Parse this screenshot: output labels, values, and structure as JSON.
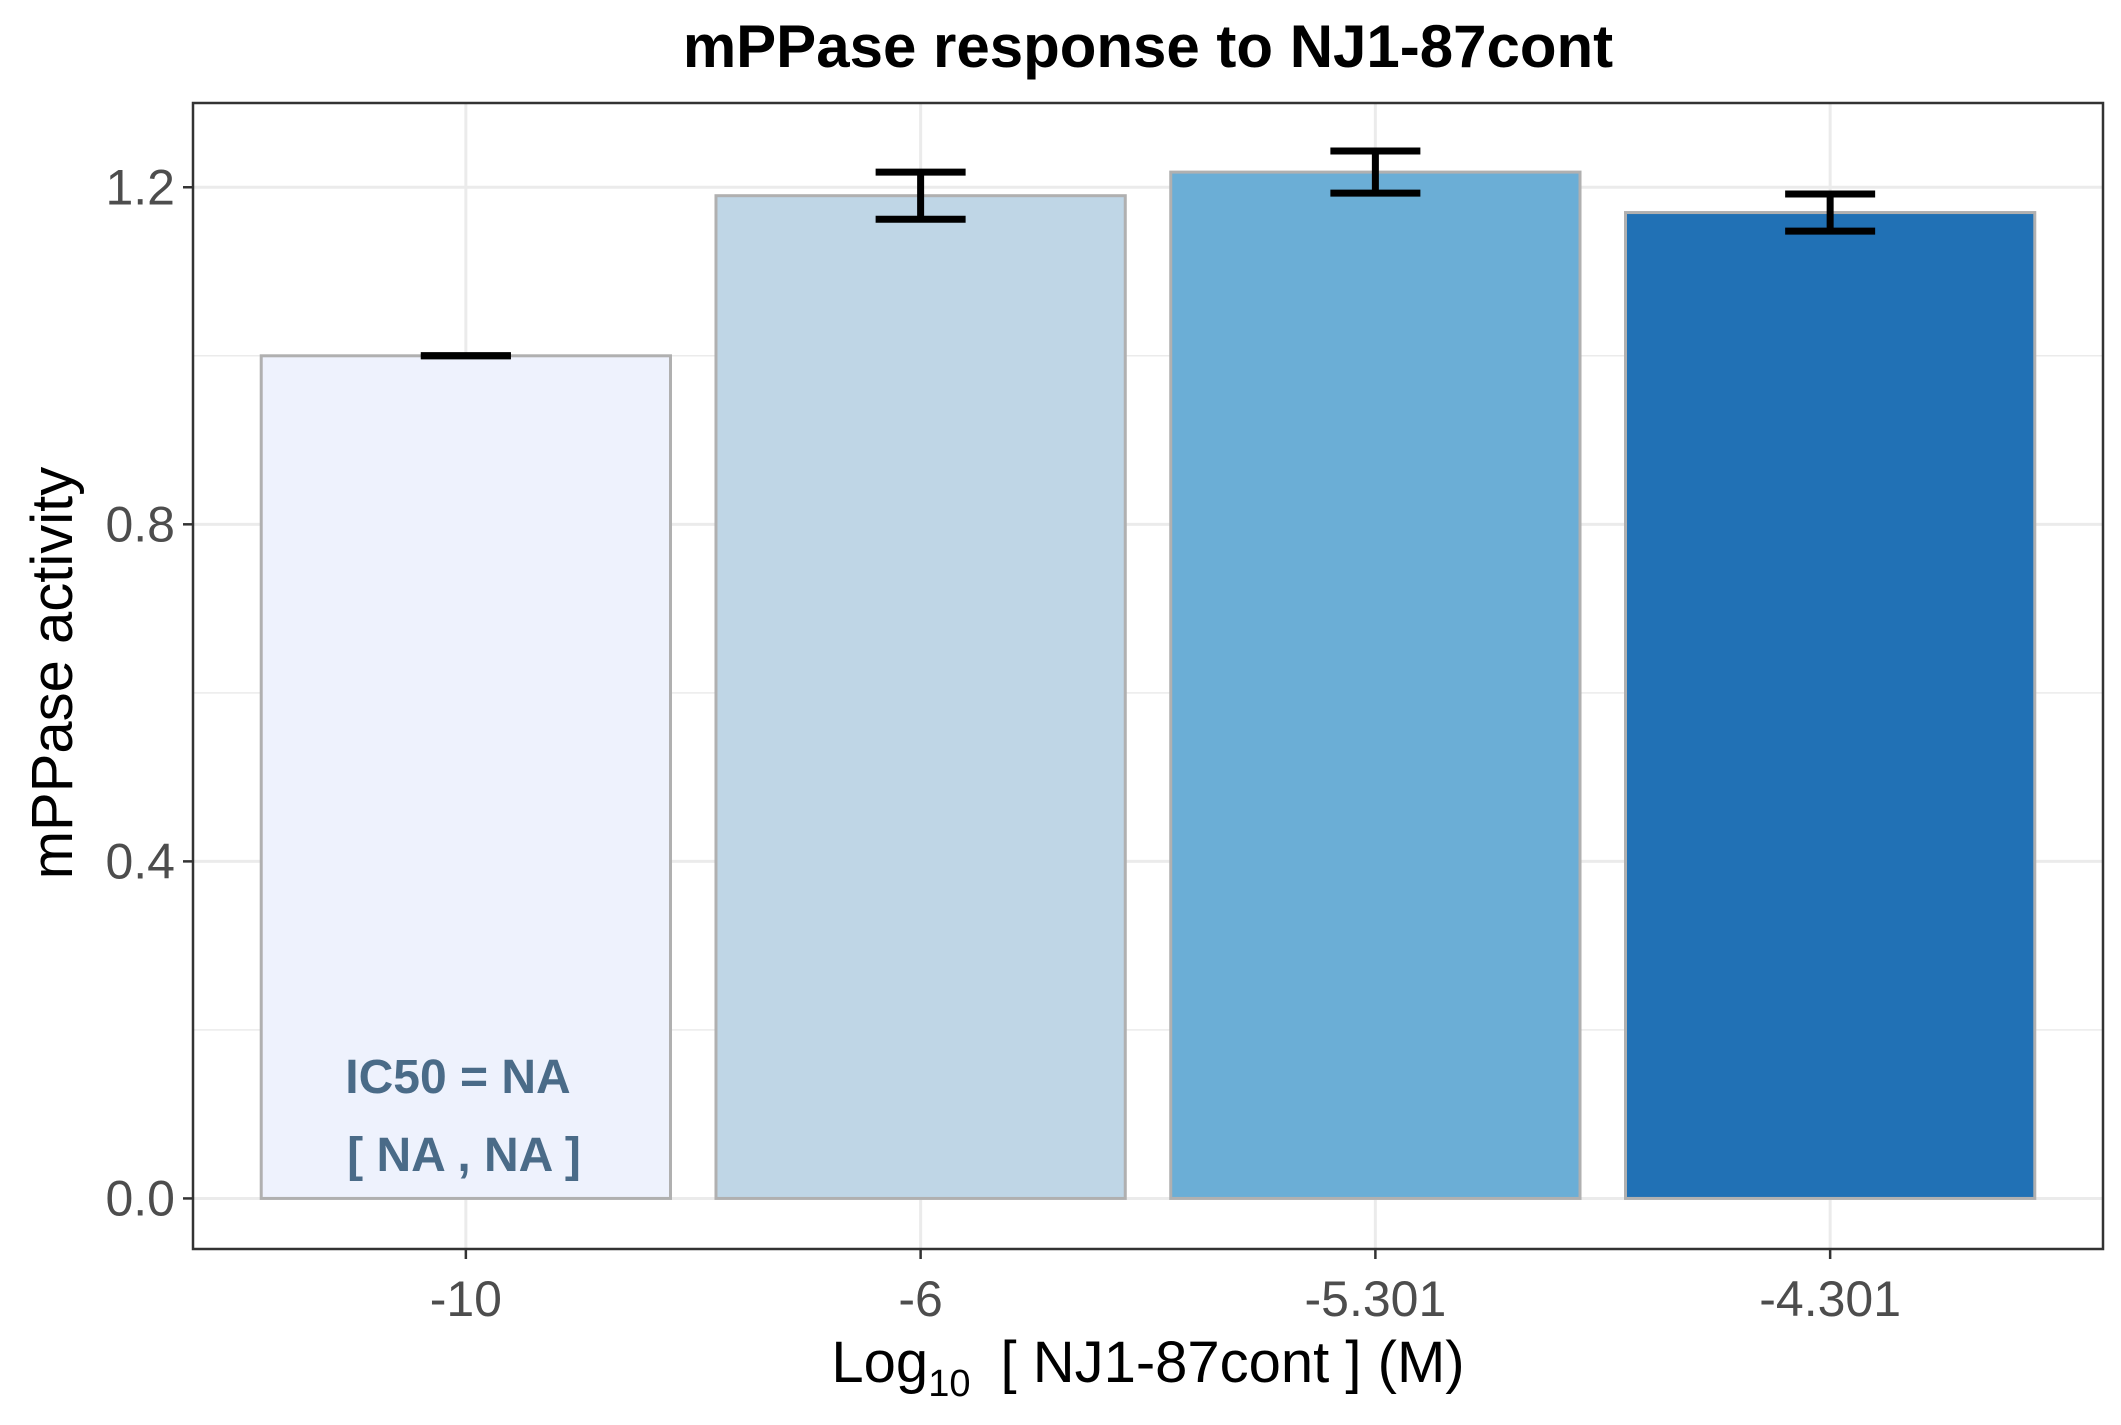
{
  "chart_data": {
    "type": "bar",
    "title": "mPPase response to NJ1-87cont",
    "xlabel": {
      "prefix": "Log",
      "subscript": "10",
      "suffix": "[ NJ1-87cont ] (M)"
    },
    "ylabel": "mPPase activity",
    "categories": [
      "-10",
      "-6",
      "-5.301",
      "-4.301"
    ],
    "values": [
      1.0,
      1.19,
      1.218,
      1.17
    ],
    "errors": [
      0.0,
      0.028,
      0.025,
      0.022
    ],
    "bar_colors": [
      "#eef2fd",
      "#bfd6e6",
      "#6baed6",
      "#2171b5"
    ],
    "ylim": [
      -0.06,
      1.3
    ],
    "yticks": [
      0.0,
      0.4,
      0.8,
      1.2
    ],
    "ytick_labels": [
      "0.0",
      "0.4",
      "0.8",
      "1.2"
    ],
    "grid": true,
    "annotation": {
      "line1": "IC50 = NA",
      "line2": "[ NA , NA ]"
    },
    "colors": {
      "bar_border": "#b0b0b0",
      "grid": "#ebebeb",
      "error_bar": "#000000",
      "annotation": "#4a6b88"
    }
  }
}
